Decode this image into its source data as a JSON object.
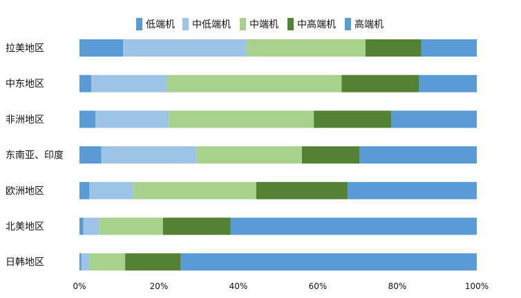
{
  "chart_data": {
    "type": "bar",
    "orientation": "horizontal",
    "stacked": "percent",
    "categories": [
      "拉美地区",
      "中东地区",
      "非洲地区",
      "东南亚、印度",
      "欧洲地区",
      "北美地区",
      "日韩地区"
    ],
    "series": [
      {
        "name": "低端机",
        "color": "#5b9bd5",
        "values": [
          11,
          3,
          4,
          5.5,
          2.5,
          1,
          0.5
        ]
      },
      {
        "name": "中低端机",
        "color": "#9dc3e6",
        "values": [
          31,
          19,
          18.5,
          24,
          11,
          4,
          2
        ]
      },
      {
        "name": "中端机",
        "color": "#a9d18e",
        "values": [
          30,
          44,
          36.5,
          26.5,
          31,
          16,
          9
        ]
      },
      {
        "name": "中高端机",
        "color": "#548235",
        "values": [
          14,
          19.5,
          19.5,
          14.5,
          23,
          17,
          14
        ]
      },
      {
        "name": "高端机",
        "color": "#5b9bd5",
        "values": [
          14,
          14.5,
          21.5,
          29.5,
          32.5,
          62,
          74.5
        ]
      }
    ],
    "xticks": [
      "0%",
      "20%",
      "40%",
      "60%",
      "80%",
      "100%"
    ],
    "xlim": [
      0,
      100
    ],
    "legend": "top",
    "grid": false,
    "title": "",
    "xlabel": "",
    "ylabel": ""
  }
}
